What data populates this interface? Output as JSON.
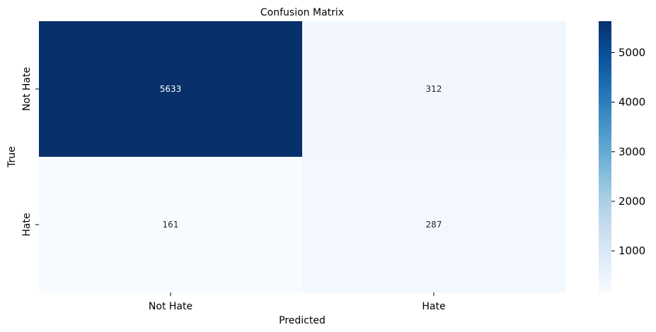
{
  "chart_data": {
    "type": "heatmap",
    "title": "Confusion Matrix",
    "xlabel": "Predicted",
    "ylabel": "True",
    "x_categories": [
      "Not Hate",
      "Hate"
    ],
    "y_categories": [
      "Not Hate",
      "Hate"
    ],
    "values": [
      [
        5633,
        312
      ],
      [
        161,
        287
      ]
    ],
    "colormap": "Blues",
    "colorbar": {
      "ticks": [
        1000,
        2000,
        3000,
        4000,
        5000
      ],
      "range": [
        161,
        5633
      ]
    },
    "colors": {
      "low": "#f7fbff",
      "high": "#08306b"
    },
    "grid": false,
    "legend": "colorbar-right"
  }
}
